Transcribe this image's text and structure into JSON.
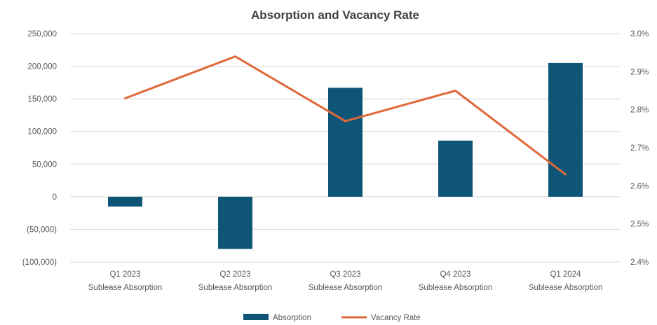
{
  "chart_data": {
    "type": "bar+line",
    "title": "Absorption and Vacancy Rate",
    "categories": [
      [
        "Q1 2023",
        "Sublease Absorption"
      ],
      [
        "Q2 2023",
        "Sublease Absorption"
      ],
      [
        "Q3 2023",
        "Sublease Absorption"
      ],
      [
        "Q4 2023",
        "Sublease Absorption"
      ],
      [
        "Q1 2024",
        "Sublease Absorption"
      ]
    ],
    "series": [
      {
        "name": "Absorption",
        "type": "bar",
        "axis": "left",
        "color": "#0e5577",
        "values": [
          -15000,
          -80000,
          167000,
          86000,
          205000
        ]
      },
      {
        "name": "Vacancy Rate",
        "type": "line",
        "axis": "right",
        "color": "#e0683a",
        "values": [
          2.83,
          2.94,
          2.77,
          2.85,
          2.63
        ]
      }
    ],
    "y_left": {
      "min": -100000,
      "max": 250000,
      "step": 50000,
      "tick_labels": [
        "(100,000)",
        "(50,000)",
        "0",
        "50,000",
        "100,000",
        "150,000",
        "200,000",
        "250,000"
      ]
    },
    "y_right": {
      "min": 2.4,
      "max": 3.0,
      "step": 0.1,
      "tick_labels": [
        "2.4%",
        "2.5%",
        "2.6%",
        "2.7%",
        "2.8%",
        "2.9%",
        "3.0%"
      ]
    },
    "grid": true,
    "legend": "bottom"
  }
}
